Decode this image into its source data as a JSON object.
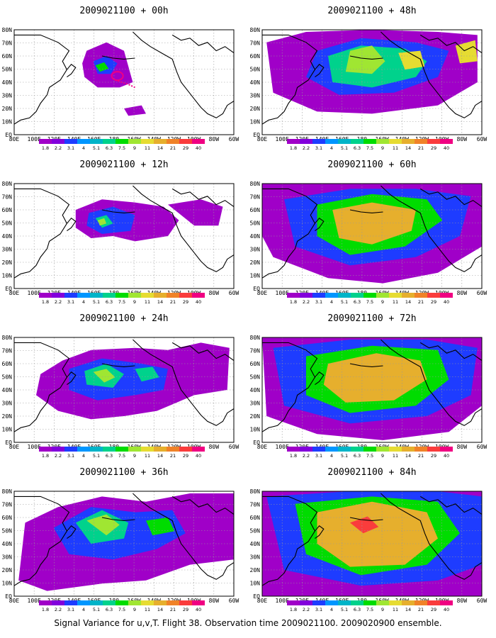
{
  "colorbar": {
    "labels": [
      "1.8",
      "2.2",
      "3.1",
      "4",
      "5.1",
      "6.3",
      "7.5",
      "9",
      "11",
      "14",
      "21",
      "29",
      "40"
    ],
    "colors": [
      "#a000c8",
      "#8200dc",
      "#1e3cff",
      "#0096ff",
      "#00b4c8",
      "#00d28c",
      "#00dc00",
      "#a0e632",
      "#e6dc32",
      "#e6af2d",
      "#f08228",
      "#fa3c3c",
      "#f00082"
    ]
  },
  "axes": {
    "lon_labels": [
      "80E",
      "100E",
      "120E",
      "140E",
      "160E",
      "180",
      "160W",
      "140W",
      "120W",
      "100W",
      "80W",
      "60W"
    ],
    "lat_labels": [
      "80N",
      "70N",
      "60N",
      "50N",
      "40N",
      "30N",
      "20N",
      "10N",
      "EQ"
    ]
  },
  "panels": [
    {
      "title": "2009021100 + 00h",
      "level": 0
    },
    {
      "title": "2009021100 + 48h",
      "level": 4
    },
    {
      "title": "2009021100 + 12h",
      "level": 1
    },
    {
      "title": "2009021100 + 60h",
      "level": 5
    },
    {
      "title": "2009021100 + 24h",
      "level": 2
    },
    {
      "title": "2009021100 + 72h",
      "level": 6
    },
    {
      "title": "2009021100 + 36h",
      "level": 3
    },
    {
      "title": "2009021100 + 84h",
      "level": 7
    }
  ],
  "footer": "Signal Variance for u,v,T. Flight 38. Observation time 2009021100. 2009020900 ensemble."
}
